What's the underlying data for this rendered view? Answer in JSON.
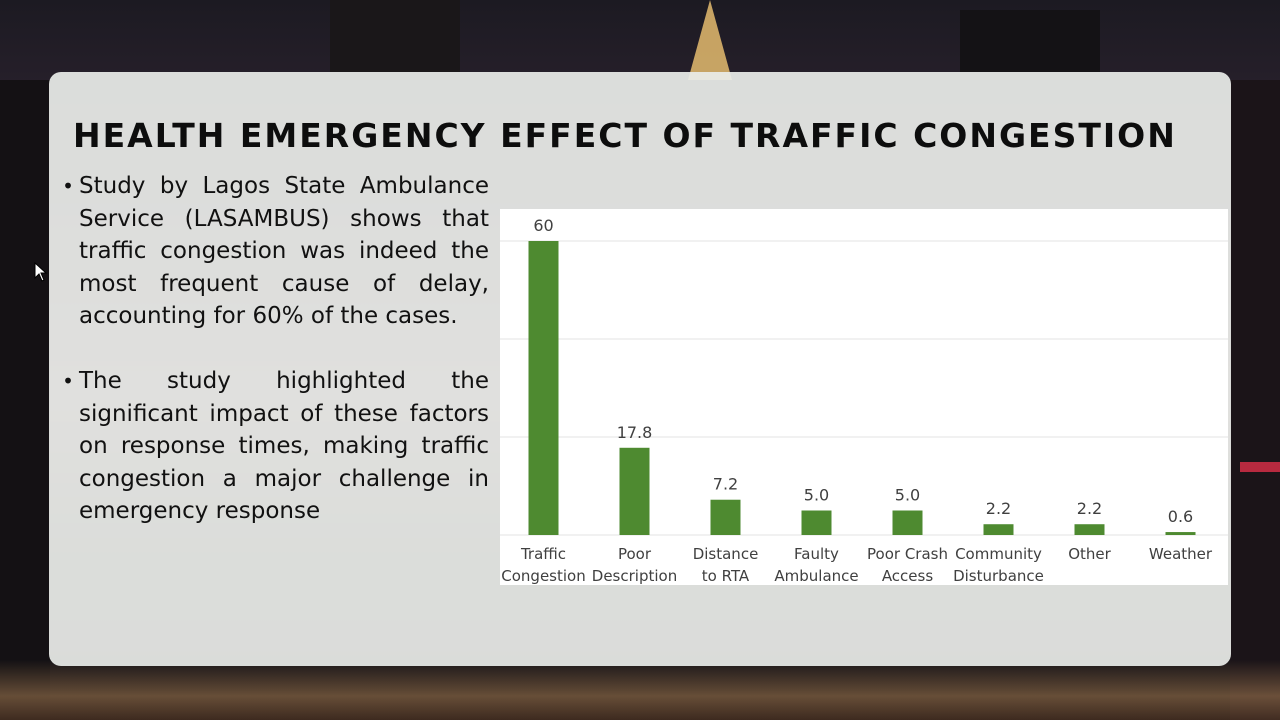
{
  "slide": {
    "title": "HEALTH EMERGENCY EFFECT OF TRAFFIC CONGESTION",
    "bullets": [
      "Study by Lagos State Ambulance Service (LASAMBUS) shows that traffic congestion was indeed the most frequent cause of delay, accounting for 60% of the cases.",
      "The study highlighted the significant impact of these factors on response times, making traffic congestion a major challenge in emergency response"
    ]
  },
  "chart_data": {
    "type": "bar",
    "categories": [
      [
        "Traffic",
        "Congestion"
      ],
      [
        "Poor",
        "Description"
      ],
      [
        "Distance",
        "to RTA"
      ],
      [
        "Faulty",
        "Ambulance"
      ],
      [
        "Poor Crash",
        "Access"
      ],
      [
        "Community",
        "Disturbance"
      ],
      [
        "Other"
      ],
      [
        "Weather"
      ]
    ],
    "values": [
      60,
      17.8,
      7.2,
      5.0,
      5.0,
      2.2,
      2.2,
      0.6
    ],
    "value_labels": [
      "60",
      "17.8",
      "7.2",
      "5.0",
      "5.0",
      "2.2",
      "2.2",
      "0.6"
    ],
    "ylim": [
      0,
      60
    ],
    "grid": true,
    "legend": "none",
    "bar_color": "#4e8a30",
    "gridline_color": "#e3e3e3",
    "label_color": "#404040"
  }
}
